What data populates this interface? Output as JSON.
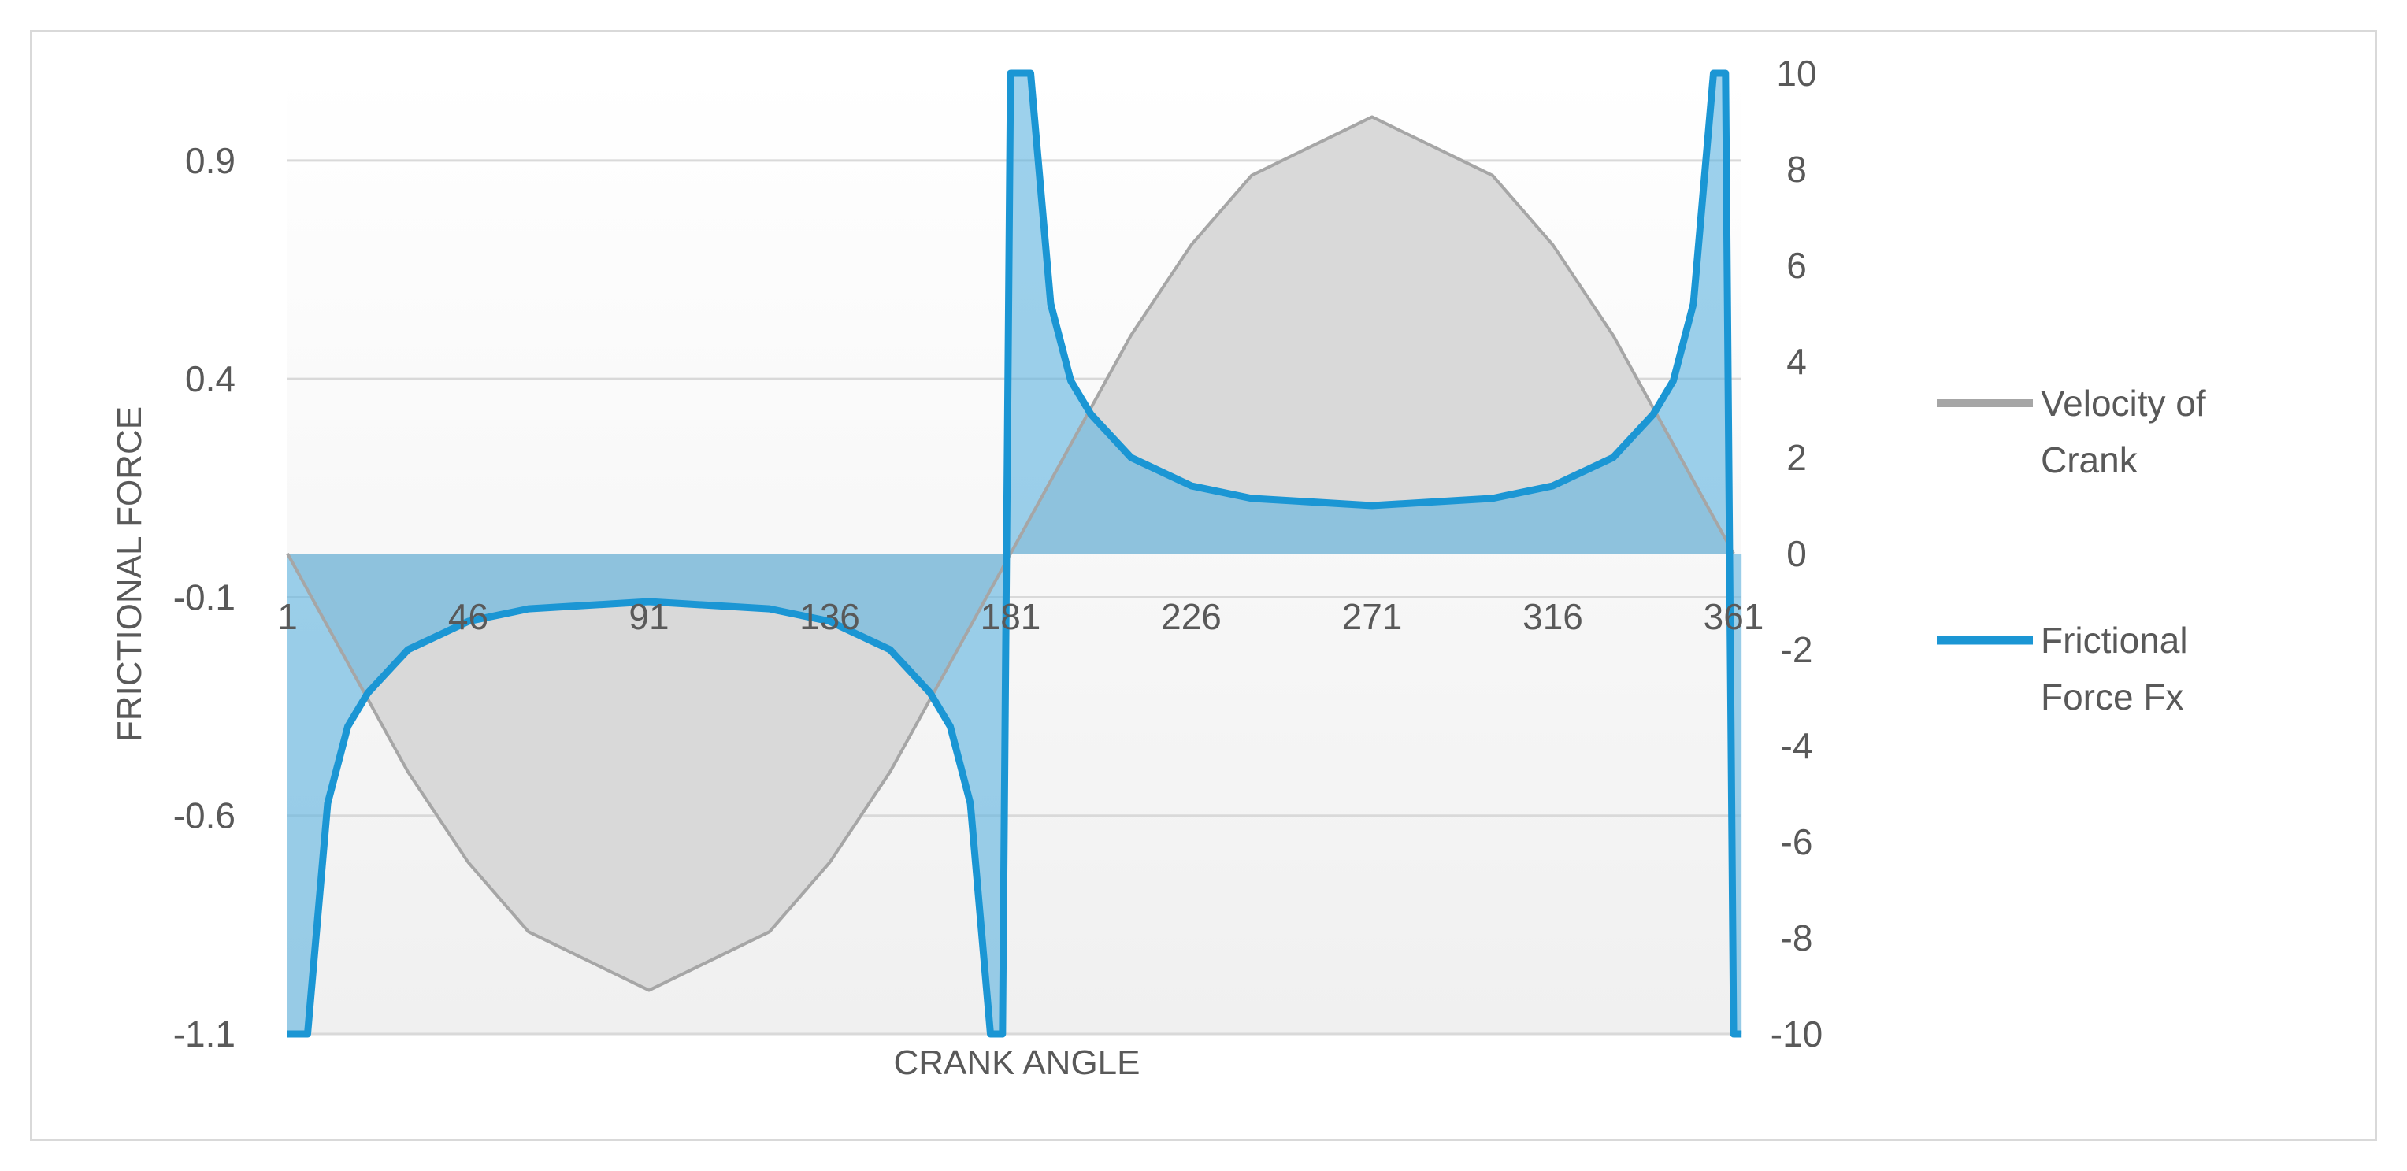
{
  "chart_data": {
    "type": "area",
    "xlabel": "CRANK ANGLE",
    "ylabel": "FRICTIONAL FORCE",
    "x_ticks": [
      "1",
      "46",
      "91",
      "136",
      "181",
      "226",
      "271",
      "316",
      "361"
    ],
    "x_range": [
      1,
      365
    ],
    "y_left": {
      "ticks": [
        "0.9",
        "0.4",
        "-0.1",
        "-0.6",
        "-1.1"
      ],
      "range": [
        -1.1,
        1.1
      ]
    },
    "y_right": {
      "ticks": [
        "10",
        "8",
        "6",
        "4",
        "2",
        "0",
        "-2",
        "-4",
        "-6",
        "-8",
        "-10"
      ],
      "range": [
        -10,
        10
      ]
    },
    "grid": true,
    "legend_position": "right",
    "series": [
      {
        "name": "Velocity of Crank",
        "axis": "left",
        "color": "#a6a6a6",
        "fill": "#d9d9d9",
        "x": [
          1,
          31,
          46,
          61,
          91,
          121,
          136,
          151,
          181,
          211,
          226,
          241,
          271,
          301,
          316,
          331,
          361
        ],
        "y": [
          0,
          -0.5,
          -0.707,
          -0.866,
          -1.0,
          -0.866,
          -0.707,
          -0.5,
          0,
          0.5,
          0.707,
          0.866,
          1.0,
          0.866,
          0.707,
          0.5,
          0
        ]
      },
      {
        "name": "Frictional Force Fx",
        "axis": "right",
        "color": "#1b96d4",
        "fill": "#5bb3e0",
        "x": [
          1,
          6,
          11,
          16,
          21,
          31,
          46,
          61,
          91,
          121,
          136,
          151,
          161,
          166,
          171,
          176,
          179,
          181,
          183,
          186,
          191,
          196,
          201,
          211,
          226,
          241,
          271,
          301,
          316,
          331,
          341,
          346,
          351,
          356,
          359,
          361,
          363
        ],
        "y": [
          -10,
          -10,
          -5.2,
          -3.6,
          -2.9,
          -2.0,
          -1.41,
          -1.15,
          -1.0,
          -1.15,
          -1.41,
          -2.0,
          -2.9,
          -3.6,
          -5.2,
          -10,
          -10,
          10,
          10,
          10,
          5.2,
          3.6,
          2.9,
          2.0,
          1.41,
          1.15,
          1.0,
          1.15,
          1.41,
          2.0,
          2.9,
          3.6,
          5.2,
          10,
          10,
          -10,
          -10
        ]
      }
    ]
  }
}
